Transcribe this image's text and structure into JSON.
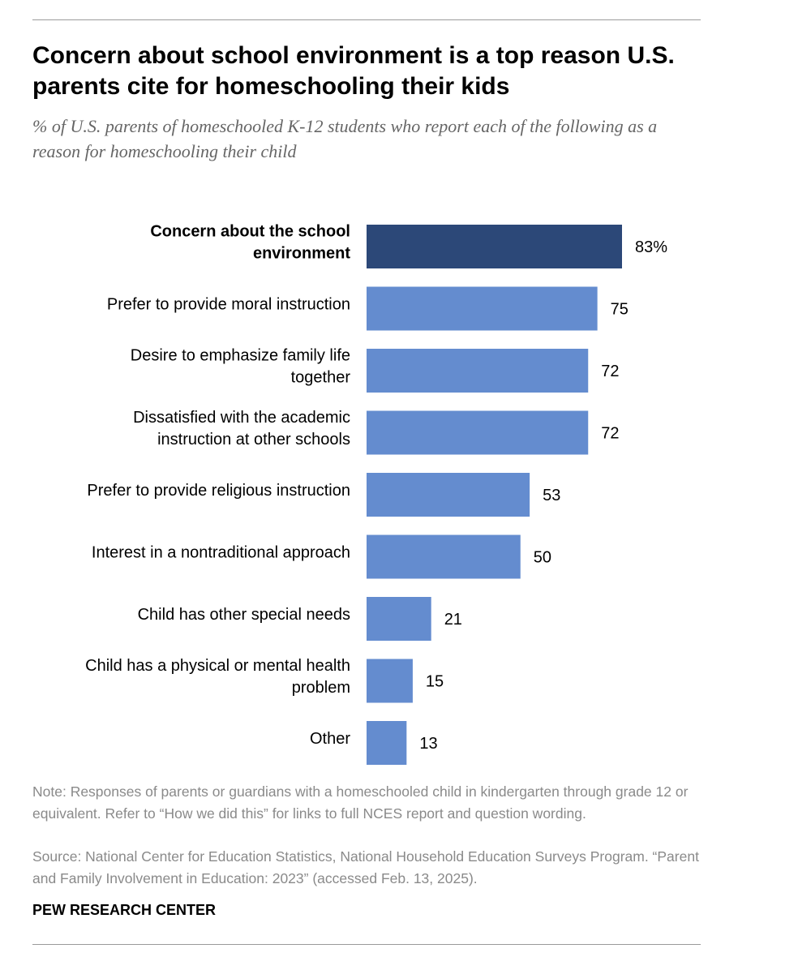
{
  "header": {
    "title": "Concern about school environment is a top reason U.S. parents cite for homeschooling their kids",
    "subtitle": "% of U.S. parents of homeschooled K-12 students who report each of the following as a reason for homeschooling their child"
  },
  "colors": {
    "highlight_bar": "#2c4878",
    "bar": "#648ccf",
    "text": "#000000",
    "muted_text": "#8a8a8a",
    "rule": "#9a9a9a"
  },
  "chart_data": {
    "type": "bar",
    "orientation": "horizontal",
    "title": "Concern about school environment is a top reason U.S. parents cite for homeschooling their kids",
    "xlabel": "",
    "ylabel": "",
    "xlim": [
      0,
      100
    ],
    "highlight_index": 0,
    "categories": [
      "Concern about the school environment",
      "Prefer to provide moral instruction",
      "Desire to emphasize family life together",
      "Dissatisfied with the academic instruction at other schools",
      "Prefer to provide religious instruction",
      "Interest in a nontraditional approach",
      "Child has other special needs",
      "Child has a physical or mental health problem",
      "Other"
    ],
    "label_lines": [
      [
        "Concern about the school",
        "environment"
      ],
      [
        "Prefer to provide moral instruction"
      ],
      [
        "Desire to emphasize family life",
        "together"
      ],
      [
        "Dissatisfied with the academic",
        "instruction at other schools"
      ],
      [
        "Prefer to provide religious instruction"
      ],
      [
        "Interest in a nontraditional approach"
      ],
      [
        "Child has other special needs"
      ],
      [
        "Child has a physical or mental health",
        "problem"
      ],
      [
        "Other"
      ]
    ],
    "values": [
      83,
      75,
      72,
      72,
      53,
      50,
      21,
      15,
      13
    ],
    "value_labels": [
      "83%",
      "75",
      "72",
      "72",
      "53",
      "50",
      "21",
      "15",
      "13"
    ]
  },
  "footer": {
    "note": "Note: Responses of parents or guardians with a homeschooled child in kindergarten through grade 12 or equivalent. Refer to “How we did this” for links to full NCES report and question wording.",
    "source": "Source: National Center for Education Statistics, National Household Education Surveys Program. “Parent and Family Involvement in Education: 2023” (accessed Feb. 13, 2025).",
    "brand": "PEW RESEARCH CENTER"
  }
}
